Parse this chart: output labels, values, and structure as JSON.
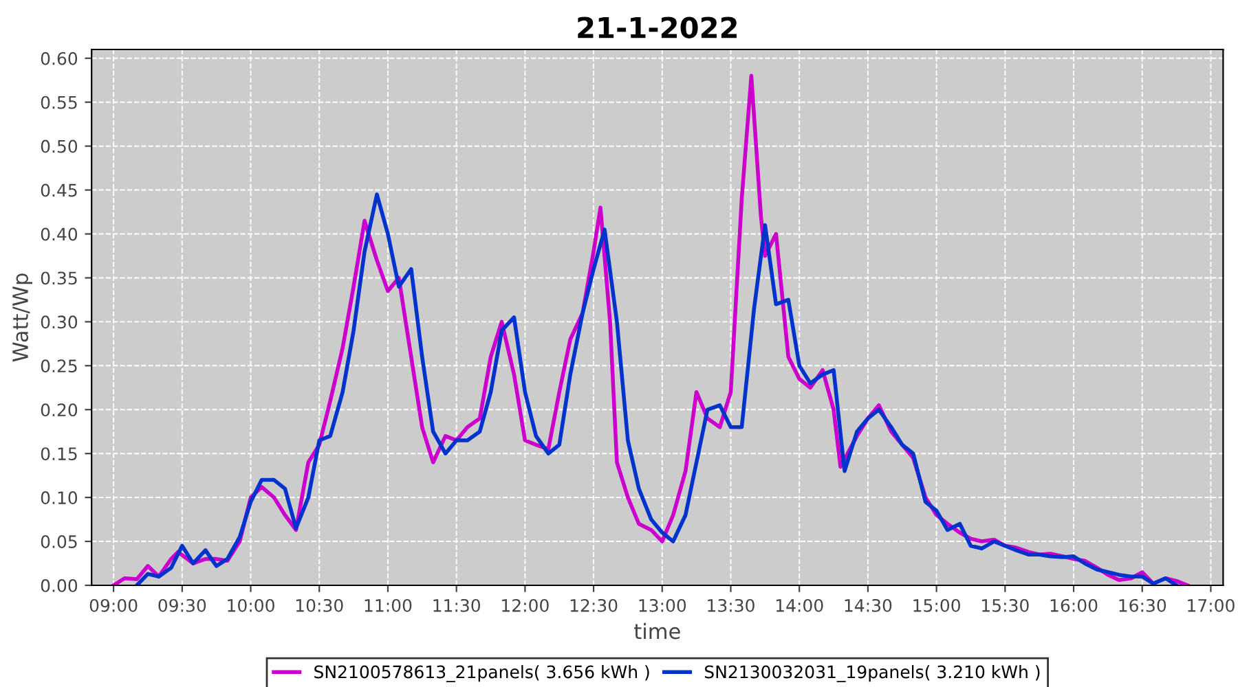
{
  "chart_data": {
    "type": "line",
    "title": "21-1-2022",
    "xlabel": "time",
    "ylabel": "Watt/Wp",
    "xlim": [
      8.84,
      17.09
    ],
    "ylim": [
      0,
      0.61
    ],
    "xticks": [
      {
        "value": 9,
        "label": "09:00"
      },
      {
        "value": 9.5,
        "label": "09:30"
      },
      {
        "value": 10,
        "label": "10:00"
      },
      {
        "value": 10.5,
        "label": "10:30"
      },
      {
        "value": 11,
        "label": "11:00"
      },
      {
        "value": 11.5,
        "label": "11:30"
      },
      {
        "value": 12,
        "label": "12:00"
      },
      {
        "value": 12.5,
        "label": "12:30"
      },
      {
        "value": 13,
        "label": "13:00"
      },
      {
        "value": 13.5,
        "label": "13:30"
      },
      {
        "value": 14,
        "label": "14:00"
      },
      {
        "value": 14.5,
        "label": "14:30"
      },
      {
        "value": 15,
        "label": "15:00"
      },
      {
        "value": 15.5,
        "label": "15:30"
      },
      {
        "value": 16,
        "label": "16:00"
      },
      {
        "value": 16.5,
        "label": "16:30"
      },
      {
        "value": 17,
        "label": "17:00"
      }
    ],
    "yticks": [
      {
        "value": 0,
        "label": "0.00"
      },
      {
        "value": 0.05,
        "label": "0.05"
      },
      {
        "value": 0.1,
        "label": "0.10"
      },
      {
        "value": 0.15,
        "label": "0.15"
      },
      {
        "value": 0.2,
        "label": "0.20"
      },
      {
        "value": 0.25,
        "label": "0.25"
      },
      {
        "value": 0.3,
        "label": "0.30"
      },
      {
        "value": 0.35,
        "label": "0.35"
      },
      {
        "value": 0.4,
        "label": "0.40"
      },
      {
        "value": 0.45,
        "label": "0.45"
      },
      {
        "value": 0.5,
        "label": "0.50"
      },
      {
        "value": 0.55,
        "label": "0.55"
      },
      {
        "value": 0.6,
        "label": "0.60"
      }
    ],
    "grid": true,
    "legend": "bottom",
    "line_style": "solid",
    "series": [
      {
        "name": "SN2100578613_21panels( 3.656 kWh )",
        "color": "#cc00cc",
        "x": [
          9.0,
          9.08,
          9.17,
          9.25,
          9.33,
          9.42,
          9.47,
          9.58,
          9.67,
          9.75,
          9.83,
          9.92,
          10.0,
          10.08,
          10.17,
          10.25,
          10.33,
          10.42,
          10.5,
          10.58,
          10.67,
          10.75,
          10.83,
          10.92,
          11.0,
          11.08,
          11.17,
          11.25,
          11.33,
          11.42,
          11.5,
          11.58,
          11.67,
          11.75,
          11.83,
          11.92,
          12.0,
          12.08,
          12.17,
          12.25,
          12.33,
          12.42,
          12.5,
          12.55,
          12.62,
          12.67,
          12.75,
          12.83,
          12.92,
          13.0,
          13.08,
          13.17,
          13.25,
          13.33,
          13.42,
          13.5,
          13.58,
          13.65,
          13.72,
          13.75,
          13.83,
          13.92,
          14.0,
          14.08,
          14.17,
          14.25,
          14.3,
          14.42,
          14.5,
          14.58,
          14.67,
          14.75,
          14.83,
          14.92,
          15.0,
          15.08,
          15.17,
          15.25,
          15.33,
          15.42,
          15.5,
          15.58,
          15.67,
          15.75,
          15.83,
          15.92,
          16.0,
          16.08,
          16.17,
          16.25,
          16.33,
          16.42,
          16.5,
          16.58,
          16.67,
          16.75,
          16.83
        ],
        "values": [
          0.0,
          0.008,
          0.007,
          0.022,
          0.01,
          0.03,
          0.038,
          0.025,
          0.03,
          0.03,
          0.028,
          0.05,
          0.1,
          0.112,
          0.1,
          0.08,
          0.063,
          0.14,
          0.16,
          0.21,
          0.27,
          0.34,
          0.415,
          0.37,
          0.335,
          0.35,
          0.26,
          0.18,
          0.14,
          0.17,
          0.165,
          0.18,
          0.19,
          0.26,
          0.3,
          0.24,
          0.165,
          0.16,
          0.155,
          0.22,
          0.28,
          0.31,
          0.38,
          0.43,
          0.3,
          0.14,
          0.1,
          0.07,
          0.063,
          0.05,
          0.08,
          0.13,
          0.22,
          0.19,
          0.18,
          0.22,
          0.44,
          0.58,
          0.42,
          0.375,
          0.4,
          0.26,
          0.235,
          0.225,
          0.245,
          0.2,
          0.135,
          0.17,
          0.19,
          0.205,
          0.175,
          0.16,
          0.145,
          0.1,
          0.08,
          0.07,
          0.06,
          0.053,
          0.05,
          0.052,
          0.045,
          0.043,
          0.038,
          0.035,
          0.036,
          0.033,
          0.03,
          0.028,
          0.02,
          0.012,
          0.006,
          0.008,
          0.015,
          0.002,
          0.008,
          0.005,
          0.0
        ]
      },
      {
        "name": "SN2130032031_19panels( 3.210 kWh )",
        "color": "#0033cc",
        "x": [
          9.17,
          9.25,
          9.33,
          9.42,
          9.5,
          9.58,
          9.67,
          9.75,
          9.83,
          9.92,
          10.0,
          10.08,
          10.17,
          10.25,
          10.33,
          10.42,
          10.5,
          10.58,
          10.67,
          10.75,
          10.83,
          10.92,
          11.0,
          11.08,
          11.17,
          11.25,
          11.33,
          11.42,
          11.5,
          11.58,
          11.67,
          11.75,
          11.83,
          11.92,
          12.0,
          12.08,
          12.17,
          12.25,
          12.33,
          12.42,
          12.5,
          12.58,
          12.67,
          12.75,
          12.83,
          12.92,
          13.0,
          13.08,
          13.17,
          13.25,
          13.33,
          13.42,
          13.5,
          13.58,
          13.67,
          13.75,
          13.83,
          13.92,
          14.0,
          14.08,
          14.17,
          14.25,
          14.33,
          14.42,
          14.5,
          14.58,
          14.67,
          14.75,
          14.83,
          14.92,
          15.0,
          15.08,
          15.17,
          15.25,
          15.33,
          15.42,
          15.5,
          15.58,
          15.67,
          15.75,
          15.83,
          15.92,
          16.0,
          16.08,
          16.17,
          16.25,
          16.33,
          16.42,
          16.5,
          16.58,
          16.67,
          16.75
        ],
        "values": [
          0.0,
          0.013,
          0.01,
          0.02,
          0.045,
          0.025,
          0.04,
          0.022,
          0.03,
          0.055,
          0.095,
          0.12,
          0.12,
          0.11,
          0.065,
          0.1,
          0.165,
          0.17,
          0.22,
          0.29,
          0.38,
          0.445,
          0.4,
          0.34,
          0.36,
          0.26,
          0.175,
          0.15,
          0.165,
          0.165,
          0.175,
          0.22,
          0.29,
          0.305,
          0.22,
          0.17,
          0.15,
          0.16,
          0.24,
          0.31,
          0.36,
          0.405,
          0.3,
          0.165,
          0.11,
          0.075,
          0.06,
          0.05,
          0.08,
          0.14,
          0.2,
          0.205,
          0.18,
          0.18,
          0.315,
          0.41,
          0.32,
          0.325,
          0.25,
          0.23,
          0.24,
          0.245,
          0.13,
          0.175,
          0.19,
          0.2,
          0.18,
          0.16,
          0.15,
          0.095,
          0.085,
          0.063,
          0.07,
          0.045,
          0.042,
          0.05,
          0.045,
          0.04,
          0.035,
          0.035,
          0.033,
          0.032,
          0.033,
          0.025,
          0.018,
          0.015,
          0.012,
          0.01,
          0.01,
          0.002,
          0.008,
          0.0
        ]
      }
    ]
  }
}
